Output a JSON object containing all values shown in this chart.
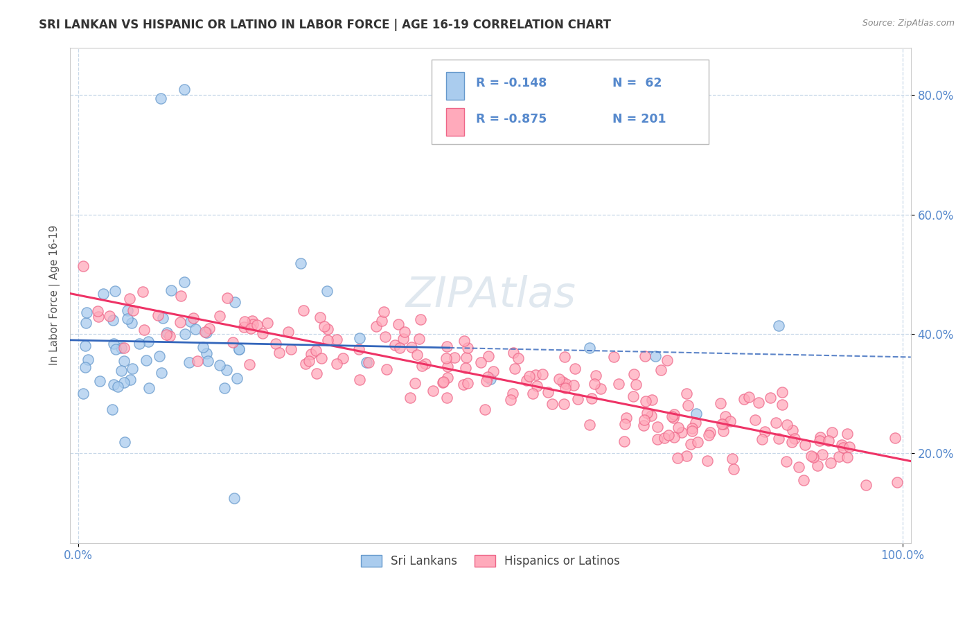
{
  "title": "SRI LANKAN VS HISPANIC OR LATINO IN LABOR FORCE | AGE 16-19 CORRELATION CHART",
  "source_text": "Source: ZipAtlas.com",
  "ylabel": "In Labor Force | Age 16-19",
  "xlim": [
    -0.01,
    1.01
  ],
  "ylim": [
    0.05,
    0.88
  ],
  "y_ticks": [
    0.2,
    0.4,
    0.6,
    0.8
  ],
  "y_tick_labels": [
    "20.0%",
    "40.0%",
    "60.0%",
    "80.0%"
  ],
  "x_ticks": [
    0.0,
    1.0
  ],
  "x_tick_labels": [
    "0.0%",
    "100.0%"
  ],
  "sri_lankan_color": "#aaccee",
  "sri_lankan_edge": "#6699cc",
  "hispanic_color": "#ffaabb",
  "hispanic_edge": "#ee6688",
  "sri_lankan_line_color": "#3366bb",
  "hispanic_line_color": "#ee3366",
  "watermark": "ZIPAtlas",
  "background_color": "#ffffff",
  "grid_color": "#c8d8e8",
  "tick_color": "#5588cc",
  "title_color": "#333333",
  "source_color": "#888888"
}
